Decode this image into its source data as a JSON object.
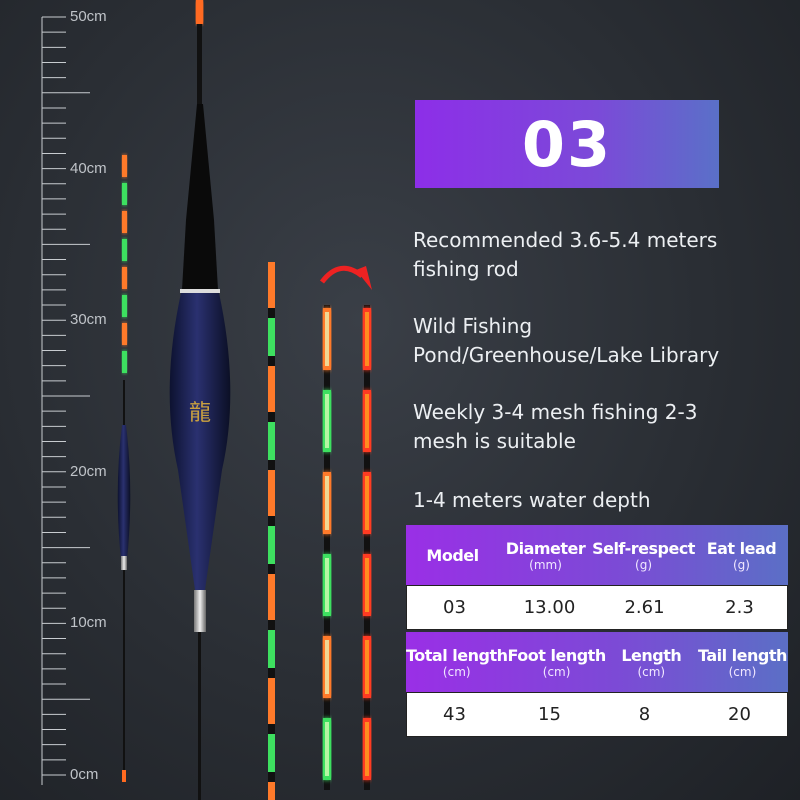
{
  "ruler": {
    "labels": [
      "50cm",
      "40cm",
      "30cm",
      "20cm",
      "10cm",
      "0cm"
    ]
  },
  "banner": {
    "model": "03"
  },
  "description": [
    "Recommended 3.6-5.4 meters fishing rod",
    "Wild Fishing Pond/Greenhouse/Lake Library",
    "Weekly 3-4 mesh fishing 2-3 mesh is suitable",
    "1-4 meters water depth"
  ],
  "table1": {
    "headers": [
      {
        "label": "Model",
        "unit": ""
      },
      {
        "label": "Diameter",
        "unit": "(mm)"
      },
      {
        "label": "Self-respect",
        "unit": "(g)"
      },
      {
        "label": "Eat lead",
        "unit": "(g)"
      }
    ],
    "values": [
      "03",
      "13.00",
      "2.61",
      "2.3"
    ]
  },
  "table2": {
    "headers": [
      {
        "label": "Total length",
        "unit": "(cm)"
      },
      {
        "label": "Foot length",
        "unit": "(cm)"
      },
      {
        "label": "Length",
        "unit": "(cm)"
      },
      {
        "label": "Tail length",
        "unit": "(cm)"
      }
    ],
    "values": [
      "43",
      "15",
      "8",
      "20"
    ]
  },
  "colors": {
    "accent": "#8d2ee8",
    "glow_orange": "#ff7a2a",
    "glow_green": "#3ee060",
    "float_body": "#1c2250"
  }
}
